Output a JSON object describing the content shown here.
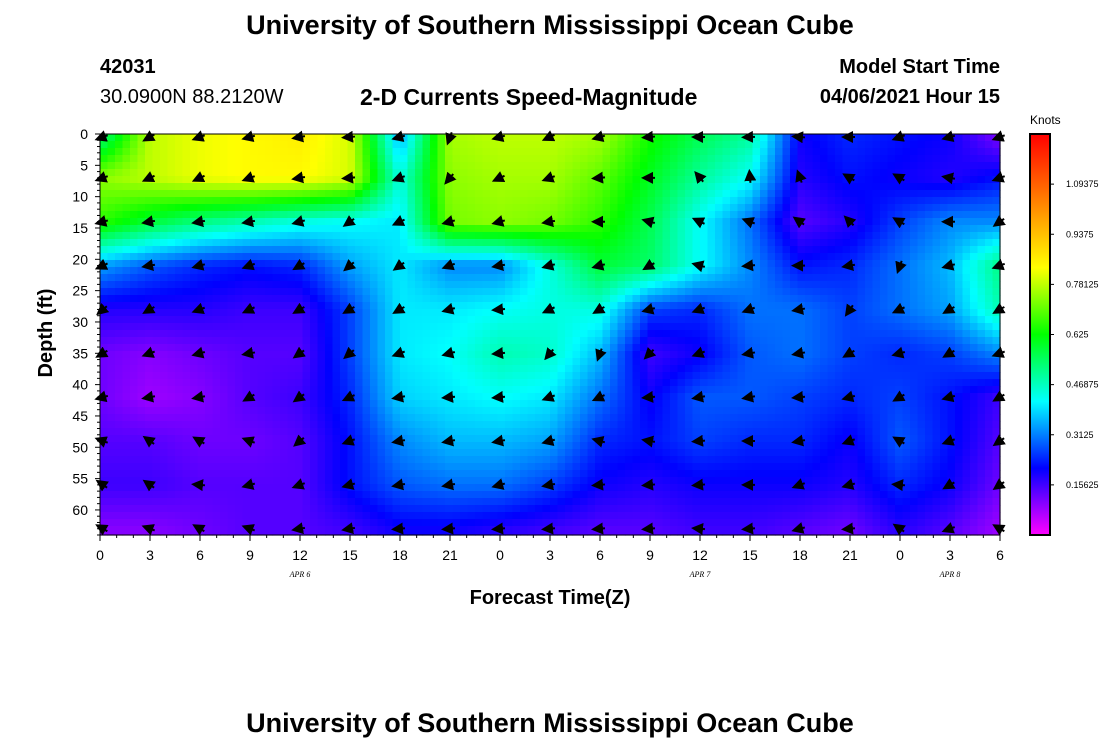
{
  "header": {
    "title": "University of Southern Mississippi Ocean Cube",
    "station_id": "42031",
    "coordinates": "30.0900N  88.2120W",
    "plot_title": "2-D Currents Speed-Magnitude",
    "model_start_label": "Model Start Time",
    "model_start_time": "04/06/2021 Hour 15"
  },
  "footer": {
    "title": "University of Southern Mississippi Ocean Cube"
  },
  "colors": {
    "scale": [
      "#ff00ff",
      "#8000ff",
      "#0000ff",
      "#0080ff",
      "#00ffff",
      "#00ff80",
      "#00ff00",
      "#80ff00",
      "#ffff00",
      "#ffc000",
      "#ff8000",
      "#ff4000",
      "#ff0000"
    ],
    "arrow": "#000000",
    "axis": "#000000"
  },
  "chart_data": {
    "type": "heatmap",
    "title": "2-D Currents Speed-Magnitude",
    "xlabel": "Forecast Time(Z)",
    "ylabel": "Depth (ft)",
    "x_tick_labels": [
      "0",
      "3",
      "6",
      "9",
      "12",
      "15",
      "18",
      "21",
      "0",
      "3",
      "6",
      "9",
      "12",
      "15",
      "18",
      "21",
      "0",
      "3",
      "6"
    ],
    "x_hours": [
      0,
      3,
      6,
      9,
      12,
      15,
      18,
      21,
      24,
      27,
      30,
      33,
      36,
      39,
      42,
      45,
      48,
      51,
      54
    ],
    "xlim": [
      0,
      54
    ],
    "date_labels": [
      {
        "label": "APR 6",
        "hour": 12
      },
      {
        "label": "APR 7",
        "hour": 36
      },
      {
        "label": "APR 8",
        "hour": 51
      }
    ],
    "y_tick_labels": [
      "0",
      "5",
      "10",
      "15",
      "20",
      "25",
      "30",
      "35",
      "40",
      "45",
      "50",
      "55",
      "60"
    ],
    "y_ticks": [
      0,
      5,
      10,
      15,
      20,
      25,
      30,
      35,
      40,
      45,
      50,
      55,
      60
    ],
    "ylim": [
      0,
      64
    ],
    "y_inverted": true,
    "colorbar": {
      "label": "Knots",
      "range": [
        0,
        1.25
      ],
      "tick_labels": [
        "0.15625",
        "0.3125",
        "0.46875",
        "0.625",
        "0.78125",
        "0.9375",
        "1.09375"
      ],
      "ticks": [
        0.15625,
        0.3125,
        0.46875,
        0.625,
        0.78125,
        0.9375,
        1.09375
      ]
    },
    "grid": false,
    "depths": [
      0,
      7,
      14,
      21,
      28,
      35,
      42,
      49,
      56,
      63
    ],
    "speed_knots": [
      [
        0.5,
        0.78,
        0.82,
        0.84,
        0.86,
        0.8,
        0.34,
        0.76,
        0.78,
        0.78,
        0.76,
        0.64,
        0.56,
        0.5,
        0.2,
        0.24,
        0.22,
        0.2,
        0.1
      ],
      [
        0.74,
        0.78,
        0.82,
        0.84,
        0.84,
        0.8,
        0.44,
        0.74,
        0.76,
        0.76,
        0.7,
        0.6,
        0.5,
        0.42,
        0.18,
        0.22,
        0.2,
        0.18,
        0.22
      ],
      [
        0.66,
        0.58,
        0.52,
        0.48,
        0.44,
        0.42,
        0.4,
        0.72,
        0.74,
        0.72,
        0.66,
        0.56,
        0.42,
        0.3,
        0.14,
        0.18,
        0.26,
        0.32,
        0.32
      ],
      [
        0.34,
        0.28,
        0.24,
        0.22,
        0.24,
        0.34,
        0.4,
        0.32,
        0.32,
        0.44,
        0.58,
        0.54,
        0.42,
        0.32,
        0.22,
        0.24,
        0.3,
        0.36,
        0.52
      ],
      [
        0.18,
        0.18,
        0.18,
        0.16,
        0.16,
        0.26,
        0.4,
        0.4,
        0.42,
        0.44,
        0.44,
        0.26,
        0.24,
        0.3,
        0.3,
        0.26,
        0.3,
        0.34,
        0.48
      ],
      [
        0.12,
        0.1,
        0.12,
        0.14,
        0.14,
        0.26,
        0.4,
        0.42,
        0.48,
        0.46,
        0.36,
        0.16,
        0.2,
        0.28,
        0.3,
        0.26,
        0.24,
        0.26,
        0.32
      ],
      [
        0.12,
        0.08,
        0.1,
        0.14,
        0.16,
        0.24,
        0.38,
        0.4,
        0.42,
        0.4,
        0.3,
        0.2,
        0.28,
        0.28,
        0.26,
        0.24,
        0.26,
        0.22,
        0.16
      ],
      [
        0.14,
        0.14,
        0.12,
        0.12,
        0.14,
        0.22,
        0.32,
        0.36,
        0.36,
        0.34,
        0.24,
        0.22,
        0.26,
        0.24,
        0.24,
        0.2,
        0.28,
        0.22,
        0.14
      ],
      [
        0.16,
        0.16,
        0.14,
        0.14,
        0.14,
        0.22,
        0.28,
        0.3,
        0.3,
        0.26,
        0.2,
        0.18,
        0.2,
        0.2,
        0.2,
        0.18,
        0.24,
        0.2,
        0.12
      ],
      [
        0.1,
        0.1,
        0.12,
        0.14,
        0.14,
        0.16,
        0.2,
        0.2,
        0.18,
        0.16,
        0.14,
        0.14,
        0.16,
        0.16,
        0.14,
        0.12,
        0.18,
        0.14,
        0.08
      ]
    ],
    "direction_deg": [
      [
        250,
        240,
        250,
        255,
        260,
        265,
        255,
        200,
        255,
        245,
        255,
        265,
        270,
        268,
        275,
        270,
        250,
        255,
        250
      ],
      [
        250,
        245,
        245,
        250,
        260,
        265,
        250,
        220,
        245,
        250,
        265,
        270,
        320,
        355,
        340,
        300,
        300,
        280,
        250
      ],
      [
        255,
        260,
        260,
        260,
        255,
        235,
        245,
        255,
        255,
        260,
        270,
        285,
        295,
        290,
        305,
        315,
        300,
        270,
        235
      ],
      [
        245,
        260,
        255,
        250,
        240,
        230,
        235,
        250,
        260,
        255,
        255,
        240,
        285,
        265,
        270,
        260,
        200,
        255,
        250
      ],
      [
        230,
        240,
        250,
        245,
        240,
        240,
        240,
        255,
        265,
        245,
        240,
        255,
        250,
        250,
        260,
        215,
        245,
        240,
        240
      ],
      [
        240,
        250,
        255,
        260,
        235,
        230,
        250,
        255,
        265,
        220,
        200,
        225,
        250,
        260,
        260,
        240,
        255,
        240,
        250
      ],
      [
        255,
        260,
        260,
        240,
        235,
        245,
        260,
        265,
        265,
        250,
        245,
        265,
        260,
        260,
        265,
        255,
        240,
        255,
        240
      ],
      [
        290,
        305,
        300,
        290,
        230,
        250,
        260,
        260,
        260,
        255,
        285,
        280,
        265,
        270,
        260,
        250,
        300,
        250,
        235
      ],
      [
        305,
        305,
        275,
        255,
        250,
        255,
        260,
        260,
        255,
        260,
        265,
        265,
        265,
        270,
        250,
        255,
        275,
        240,
        235
      ],
      [
        300,
        290,
        300,
        290,
        260,
        260,
        265,
        265,
        265,
        265,
        265,
        265,
        275,
        265,
        255,
        265,
        305,
        250,
        300
      ]
    ]
  }
}
